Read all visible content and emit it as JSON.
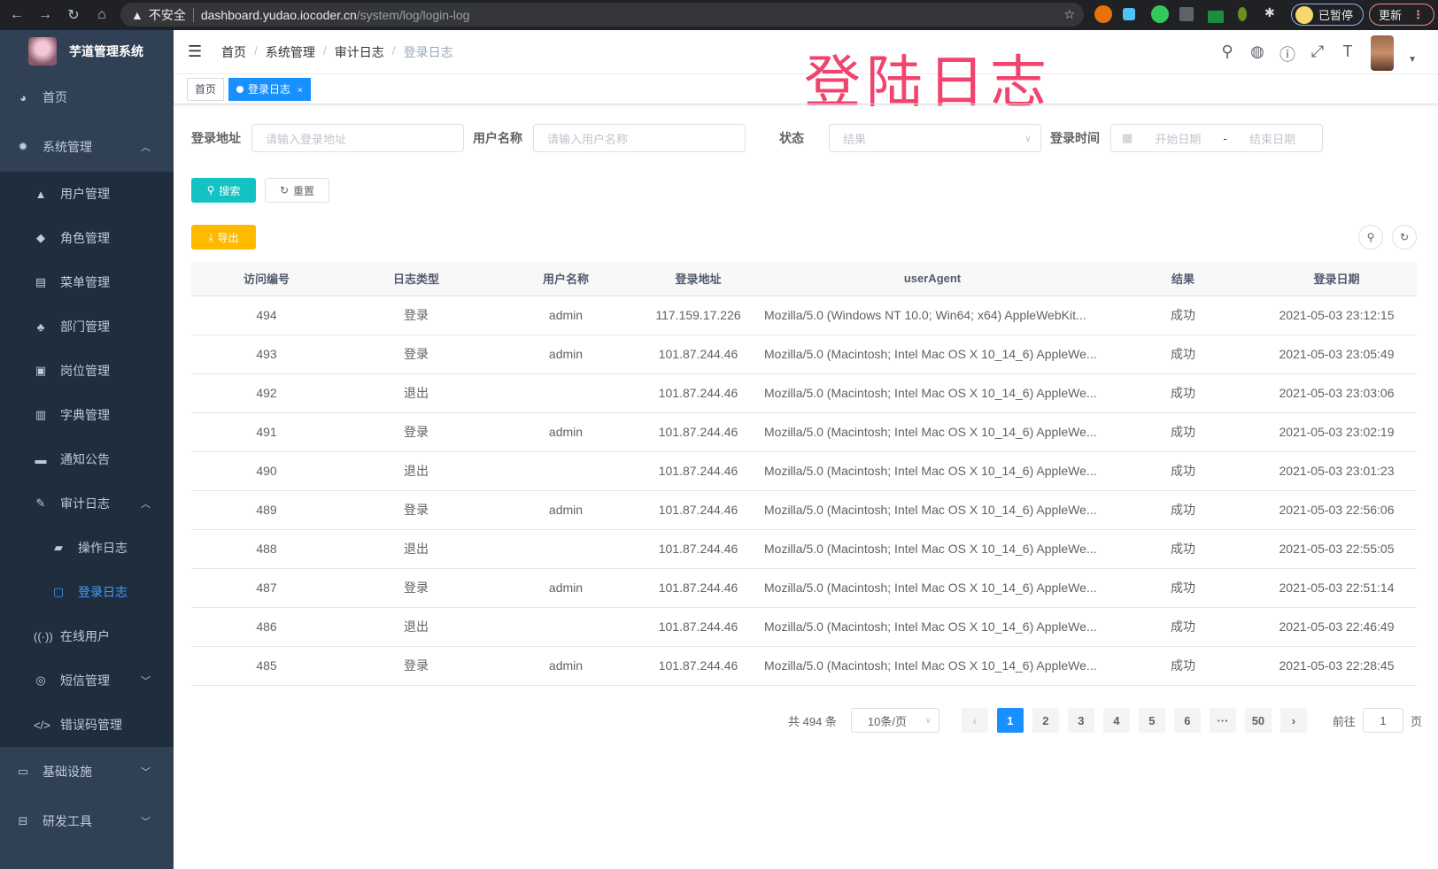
{
  "browser": {
    "security": "不安全",
    "host": "dashboard.yudao.iocoder.cn",
    "path": "/system/log/login-log",
    "paused_label": "已暂停",
    "update_label": "更新"
  },
  "app": {
    "title": "芋道管理系统"
  },
  "overlay_title": "登陆日志",
  "sidebar": {
    "items": [
      {
        "label": "首页",
        "icon": "dashboard-icon"
      },
      {
        "label": "系统管理",
        "icon": "gear-icon",
        "expanded": true,
        "children": [
          {
            "label": "用户管理",
            "icon": "user-icon"
          },
          {
            "label": "角色管理",
            "icon": "peoples-icon"
          },
          {
            "label": "菜单管理",
            "icon": "tree-table-icon"
          },
          {
            "label": "部门管理",
            "icon": "tree-icon"
          },
          {
            "label": "岗位管理",
            "icon": "post-icon"
          },
          {
            "label": "字典管理",
            "icon": "dict-icon"
          },
          {
            "label": "通知公告",
            "icon": "message-icon"
          },
          {
            "label": "审计日志",
            "icon": "log-icon",
            "expanded": true,
            "children": [
              {
                "label": "操作日志",
                "icon": "form-icon"
              },
              {
                "label": "登录日志",
                "icon": "logininfor-icon",
                "active": true
              }
            ]
          },
          {
            "label": "在线用户",
            "icon": "online-icon"
          },
          {
            "label": "短信管理",
            "icon": "sms-icon",
            "expanded": false
          },
          {
            "label": "错误码管理",
            "icon": "code-icon"
          }
        ]
      },
      {
        "label": "基础设施",
        "icon": "monitor-icon",
        "expanded": false
      },
      {
        "label": "研发工具",
        "icon": "tool-icon",
        "expanded": false
      }
    ]
  },
  "breadcrumb": [
    "首页",
    "系统管理",
    "审计日志",
    "登录日志"
  ],
  "tags": [
    {
      "label": "首页"
    },
    {
      "label": "登录日志",
      "active": true
    }
  ],
  "filters": {
    "address": {
      "label": "登录地址",
      "placeholder": "请输入登录地址"
    },
    "username": {
      "label": "用户名称",
      "placeholder": "请输入用户名称"
    },
    "status": {
      "label": "状态",
      "placeholder": "结果"
    },
    "time": {
      "label": "登录时间",
      "start_placeholder": "开始日期",
      "separator": "-",
      "end_placeholder": "结束日期"
    }
  },
  "buttons": {
    "search": "搜索",
    "reset": "重置",
    "export": "导出"
  },
  "colors": {
    "primary": "#1890ff",
    "search_button": "#13c2c2",
    "export_button": "#ffba00",
    "sidebar_bg": "#304156",
    "submenu_bg": "#1f2d3d"
  },
  "table": {
    "columns": [
      "访问编号",
      "日志类型",
      "用户名称",
      "登录地址",
      "userAgent",
      "结果",
      "登录日期"
    ],
    "rows": [
      [
        "494",
        "登录",
        "admin",
        "117.159.17.226",
        "Mozilla/5.0 (Windows NT 10.0; Win64; x64) AppleWebKit...",
        "成功",
        "2021-05-03 23:12:15"
      ],
      [
        "493",
        "登录",
        "admin",
        "101.87.244.46",
        "Mozilla/5.0 (Macintosh; Intel Mac OS X 10_14_6) AppleWe...",
        "成功",
        "2021-05-03 23:05:49"
      ],
      [
        "492",
        "退出",
        "",
        "101.87.244.46",
        "Mozilla/5.0 (Macintosh; Intel Mac OS X 10_14_6) AppleWe...",
        "成功",
        "2021-05-03 23:03:06"
      ],
      [
        "491",
        "登录",
        "admin",
        "101.87.244.46",
        "Mozilla/5.0 (Macintosh; Intel Mac OS X 10_14_6) AppleWe...",
        "成功",
        "2021-05-03 23:02:19"
      ],
      [
        "490",
        "退出",
        "",
        "101.87.244.46",
        "Mozilla/5.0 (Macintosh; Intel Mac OS X 10_14_6) AppleWe...",
        "成功",
        "2021-05-03 23:01:23"
      ],
      [
        "489",
        "登录",
        "admin",
        "101.87.244.46",
        "Mozilla/5.0 (Macintosh; Intel Mac OS X 10_14_6) AppleWe...",
        "成功",
        "2021-05-03 22:56:06"
      ],
      [
        "488",
        "退出",
        "",
        "101.87.244.46",
        "Mozilla/5.0 (Macintosh; Intel Mac OS X 10_14_6) AppleWe...",
        "成功",
        "2021-05-03 22:55:05"
      ],
      [
        "487",
        "登录",
        "admin",
        "101.87.244.46",
        "Mozilla/5.0 (Macintosh; Intel Mac OS X 10_14_6) AppleWe...",
        "成功",
        "2021-05-03 22:51:14"
      ],
      [
        "486",
        "退出",
        "",
        "101.87.244.46",
        "Mozilla/5.0 (Macintosh; Intel Mac OS X 10_14_6) AppleWe...",
        "成功",
        "2021-05-03 22:46:49"
      ],
      [
        "485",
        "登录",
        "admin",
        "101.87.244.46",
        "Mozilla/5.0 (Macintosh; Intel Mac OS X 10_14_6) AppleWe...",
        "成功",
        "2021-05-03 22:28:45"
      ]
    ]
  },
  "pagination": {
    "total_text": "共 494 条",
    "page_size": "10条/页",
    "pages": [
      "1",
      "2",
      "3",
      "4",
      "5",
      "6",
      "···",
      "50"
    ],
    "current": "1",
    "goto_label": "前往",
    "goto_value": "1",
    "page_suffix": "页"
  }
}
